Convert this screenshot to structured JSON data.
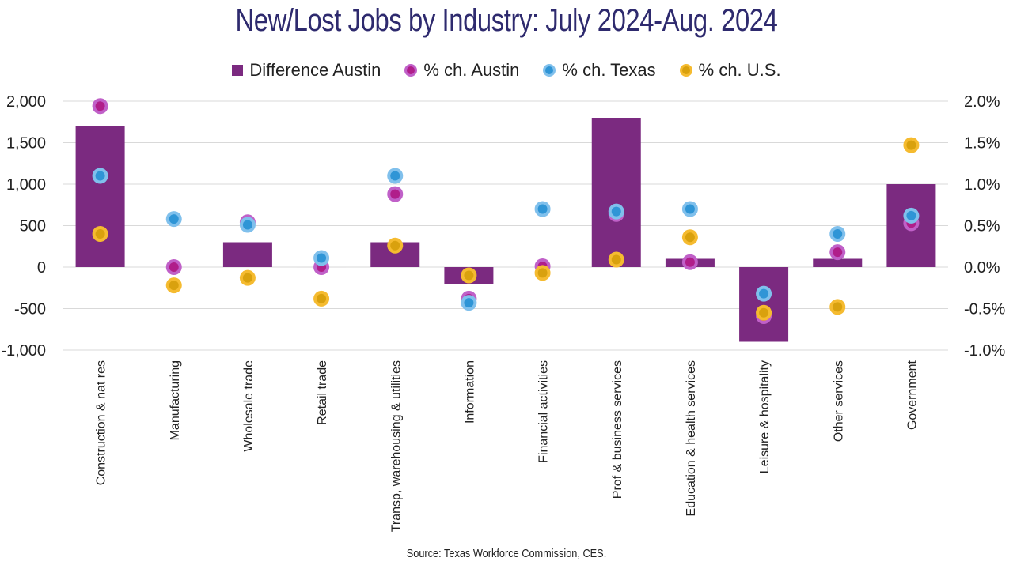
{
  "chart_data": {
    "type": "bar",
    "title": "New/Lost Jobs by Industry: July 2024-Aug. 2024",
    "source": "Source: Texas Workforce Commission, CES.",
    "categories": [
      "Construction & nat res",
      "Manufacturing",
      "Wholesale trade",
      "Retail trade",
      "Transp, warehousing & utilities",
      "Information",
      "Financial activities",
      "Prof & business services",
      "Education & health services",
      "Leisure & hospitality",
      "Other services",
      "Government"
    ],
    "bar_series": {
      "name": "Difference Austin",
      "axis": "left",
      "color": "#7b2a80",
      "values": [
        1700,
        0,
        300,
        0,
        300,
        -200,
        0,
        1800,
        100,
        -900,
        100,
        1000
      ]
    },
    "point_series": [
      {
        "name": "% ch. Austin",
        "axis": "right",
        "color": "#c060c8",
        "inner": "#b01e8a",
        "values": [
          1.94,
          0.0,
          0.54,
          0.0,
          0.88,
          -0.38,
          0.01,
          0.64,
          0.06,
          -0.59,
          0.18,
          0.53
        ]
      },
      {
        "name": "% ch. Texas",
        "axis": "right",
        "color": "#80c0ec",
        "inner": "#2f95d6",
        "values": [
          1.1,
          0.58,
          0.51,
          0.11,
          1.1,
          -0.43,
          0.7,
          0.67,
          0.7,
          -0.32,
          0.4,
          0.62
        ]
      },
      {
        "name": "% ch. U.S.",
        "axis": "right",
        "color": "#f5bb30",
        "inner": "#d9a10e",
        "values": [
          0.4,
          -0.22,
          -0.13,
          -0.38,
          0.26,
          -0.1,
          -0.07,
          0.09,
          0.36,
          -0.55,
          -0.48,
          1.47
        ]
      }
    ],
    "left_axis": {
      "ylim": [
        -1000,
        2000
      ],
      "ticks": [
        2000,
        1500,
        1000,
        500,
        0,
        -500,
        -1000
      ],
      "tick_labels": [
        "2,000",
        "1,500",
        "1,000",
        "500",
        "0",
        "-500",
        "-1,000"
      ]
    },
    "right_axis": {
      "ylim": [
        -1.0,
        2.0
      ],
      "ticks": [
        2.0,
        1.5,
        1.0,
        0.5,
        0.0,
        -0.5,
        -1.0
      ],
      "tick_labels": [
        "2.0%",
        "1.5%",
        "1.0%",
        "0.5%",
        "0.0%",
        "-0.5%",
        "-1.0%"
      ]
    },
    "grid": true,
    "legend": "top-center"
  }
}
